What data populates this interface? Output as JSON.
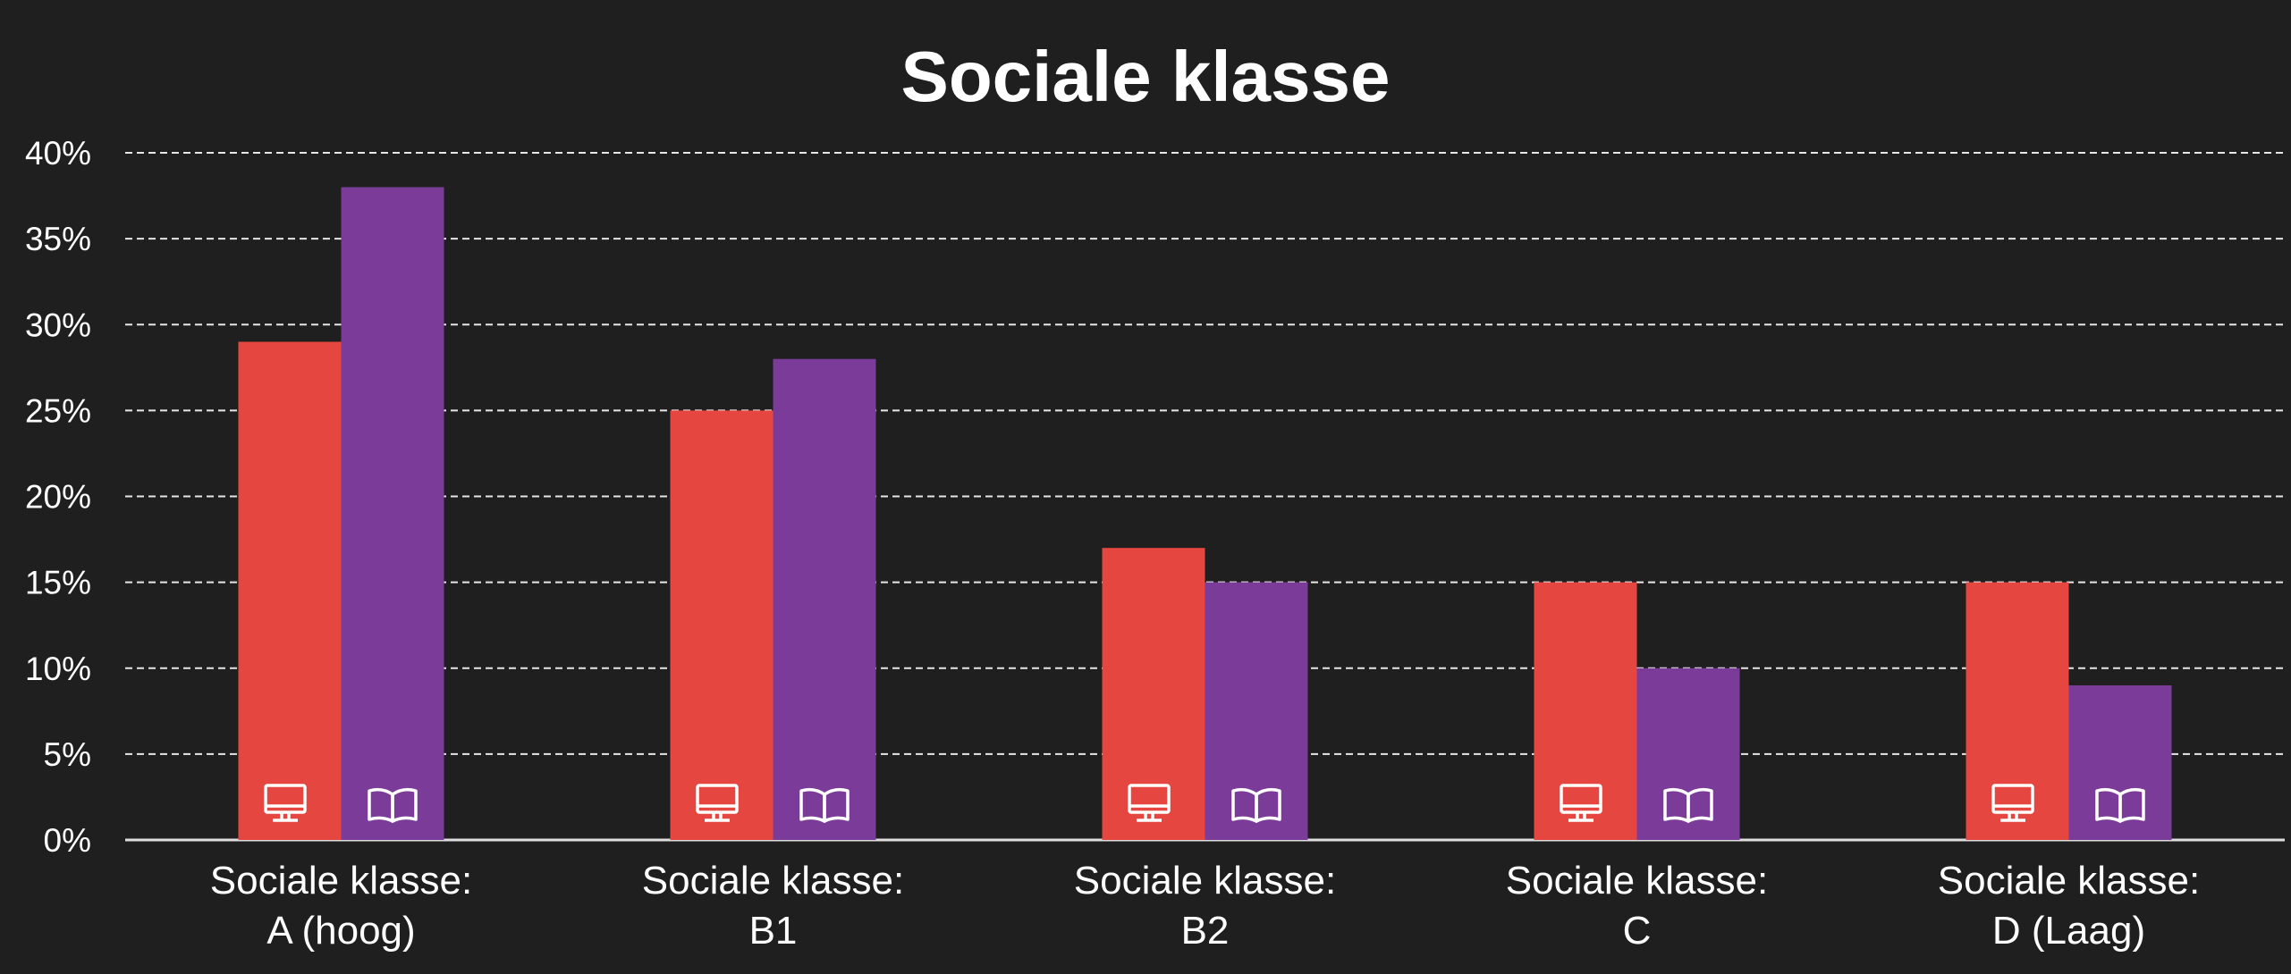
{
  "chart_data": {
    "type": "bar",
    "title": "Sociale klasse",
    "categories": [
      [
        "Sociale klasse:",
        "A (hoog)"
      ],
      [
        "Sociale klasse:",
        "B1"
      ],
      [
        "Sociale klasse:",
        "B2"
      ],
      [
        "Sociale klasse:",
        "C"
      ],
      [
        "Sociale klasse:",
        "D (Laag)"
      ]
    ],
    "series": [
      {
        "icon": "monitor-icon",
        "color": "#e5463f",
        "values": [
          29,
          25,
          17,
          15,
          15
        ]
      },
      {
        "icon": "book-icon",
        "color": "#7b3b98",
        "values": [
          38,
          28,
          15,
          10,
          9
        ]
      }
    ],
    "ylim": [
      0,
      40
    ],
    "yticks": [
      0,
      5,
      10,
      15,
      20,
      25,
      30,
      35,
      40
    ],
    "ytick_format": "{v}%",
    "grid": true,
    "background": "#1f1f1f",
    "axis_color": "#dddddd"
  }
}
